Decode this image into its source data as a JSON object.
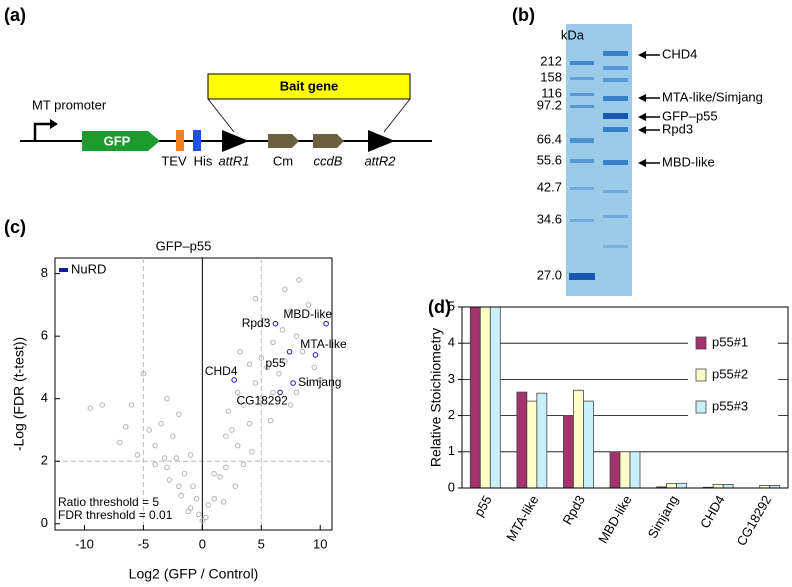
{
  "panel_labels": [
    "(a)",
    "(b)",
    "(c)",
    "(d)"
  ],
  "construct": {
    "promoter": "MT promoter",
    "gfp": "GFP",
    "tev": "TEV",
    "his": "His",
    "attr1": "attR1",
    "cm": "Cm",
    "ccdb": "ccdB",
    "attr2": "attR2",
    "bait": "Bait gene"
  },
  "gel": {
    "unit": "kDa",
    "ladder": [
      "212",
      "158",
      "116",
      "97.2",
      "66.4",
      "55.6",
      "42.7",
      "34.6",
      "27.0"
    ],
    "bands": [
      "CHD4",
      "MTA-like/Simjang",
      "GFP–p55",
      "Rpd3",
      "MBD-like"
    ]
  },
  "chart_data": [
    {
      "type": "scatter",
      "title": "GFP–p55",
      "xlabel": "Log2 (GFP / Control)",
      "ylabel": "-Log (FDR (t-test))",
      "xlim": [
        -12.5,
        11
      ],
      "ylim": [
        -0.2,
        8.5
      ],
      "xticks": [
        -10,
        -5,
        0,
        5,
        10
      ],
      "yticks": [
        0,
        2,
        4,
        6,
        8
      ],
      "threshold_x": [
        -5,
        5
      ],
      "threshold_y": 2,
      "annotations": [
        "Ratio threshold = 5",
        "FDR threshold = 0.01"
      ],
      "series": [
        {
          "color": "#b4b4b4",
          "x": [
            -1,
            -2,
            -3,
            -4,
            -2.5,
            -1.5,
            -0.5,
            -3.5,
            -4.5,
            -2,
            -6,
            -5.5,
            -7,
            -1,
            -3,
            -8.5,
            -0.8,
            -2.8,
            -1.8,
            -4,
            -5,
            -3.2,
            -6.5,
            -1.2,
            -2.2,
            1,
            2,
            3,
            4,
            2.5,
            1.5,
            0.5,
            3.5,
            5,
            6,
            5.5,
            7,
            4.5,
            6.5,
            8,
            8.5,
            7.5,
            9,
            6,
            3,
            5,
            4,
            7,
            9.5,
            10,
            8,
            2,
            3.5,
            1,
            0.3,
            -0.3,
            0,
            1.8,
            2.8,
            4.2,
            5.8,
            7.5,
            9,
            6.8,
            5.2,
            8.2,
            -9.5,
            4.5,
            3.2,
            2.2
          ],
          "values": [
            0.5,
            1.2,
            1.8,
            2.5,
            2.8,
            1.6,
            0.8,
            3.2,
            3,
            3.5,
            3.8,
            2.2,
            2.6,
            2.2,
            4,
            3.8,
            1.2,
            1.4,
            0.9,
            1.9,
            4.8,
            2.1,
            3.1,
            0.4,
            2.1,
            0.8,
            1.8,
            2.5,
            3.2,
            3,
            1.5,
            0.6,
            3.8,
            4,
            4.2,
            5,
            5.2,
            4.5,
            4.8,
            6,
            5.5,
            6.8,
            7,
            5.8,
            4.2,
            5.3,
            5.1,
            7.5,
            5,
            4.6,
            4.2,
            2.8,
            1.9,
            1.6,
            0.2,
            0.3,
            0.1,
            0.7,
            1.2,
            2.3,
            3.3,
            3.8,
            4.5,
            6.2,
            6.5,
            7.8,
            3.7,
            7.2,
            5.5,
            3.6
          ]
        },
        {
          "name": "NuRD",
          "color": "#1a1aa8",
          "x": [
            6.2,
            10.5,
            9.6,
            7.4,
            2.7,
            7.7,
            6.6
          ],
          "values": [
            6.4,
            6.4,
            5.4,
            5.5,
            4.6,
            4.5,
            4.2
          ],
          "labels": [
            "Rpd3",
            "MBD-like",
            "MTA-like",
            "p55",
            "CHD4",
            "Simjang",
            "CG18292"
          ]
        }
      ]
    },
    {
      "type": "bar",
      "ylabel": "Relative Stoichiometry",
      "categories": [
        "p55",
        "MTA-like",
        "Rpd3",
        "MBD-like",
        "Simjang",
        "CHD4",
        "CG18292"
      ],
      "ylim": [
        0,
        5
      ],
      "yticks": [
        0,
        1,
        2,
        3,
        4,
        5
      ],
      "grid": true,
      "legend": "upper right",
      "series": [
        {
          "name": "p55#1",
          "color": "#a3336b",
          "values": [
            5,
            2.65,
            2.0,
            1,
            0.03,
            0.02,
            0
          ]
        },
        {
          "name": "p55#2",
          "color": "#ffffc8",
          "values": [
            5,
            2.4,
            2.7,
            1,
            0.12,
            0.1,
            0.07
          ]
        },
        {
          "name": "p55#3",
          "color": "#c8f0fa",
          "values": [
            5,
            2.62,
            2.4,
            1,
            0.13,
            0.1,
            0.07
          ]
        }
      ]
    }
  ]
}
